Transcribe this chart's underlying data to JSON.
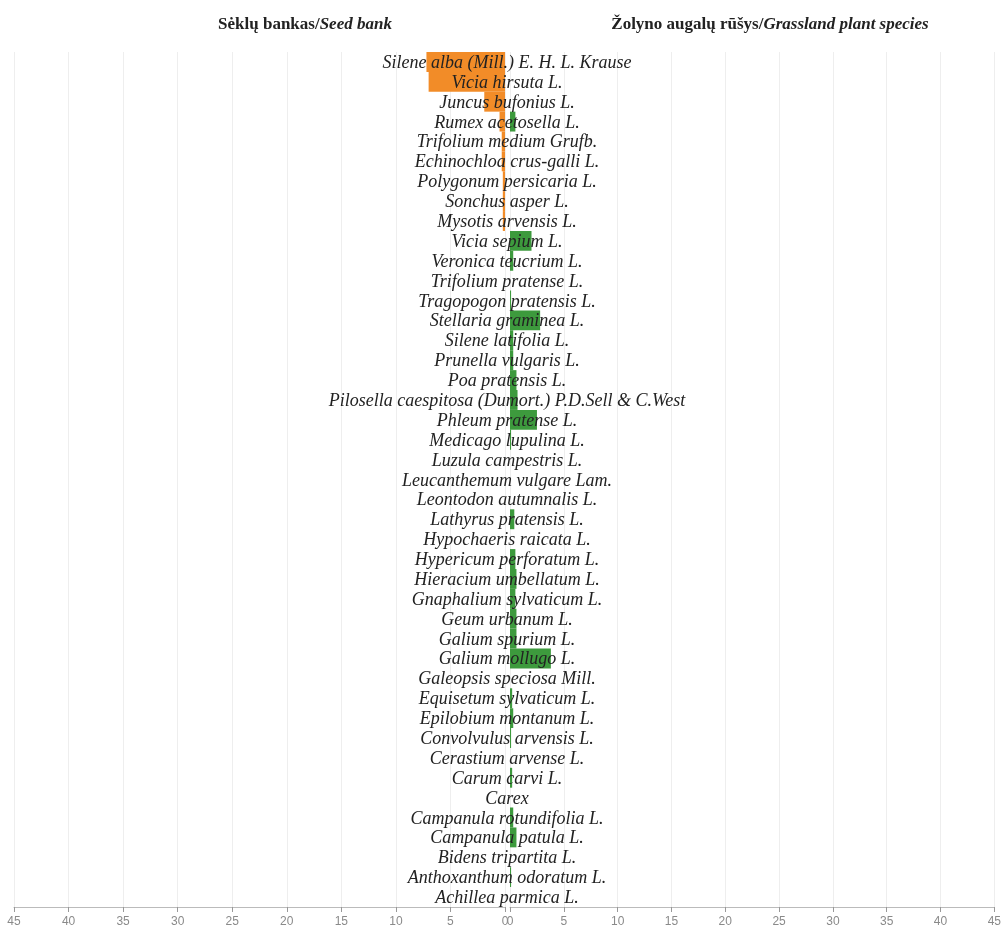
{
  "chart_data": [
    {
      "type": "bar",
      "orientation": "horizontal",
      "title": "Sėklų bankas/Seed bank",
      "tick_labels": "x",
      "grid": "x",
      "categories": [
        null,
        null,
        null,
        null,
        null,
        null,
        null,
        null,
        null,
        null,
        null,
        null,
        null,
        null,
        null,
        null,
        null,
        null,
        null,
        null,
        null,
        null,
        null,
        null,
        null,
        null,
        null,
        null,
        null,
        null,
        null,
        null,
        null,
        null,
        null,
        null,
        null,
        null,
        null,
        null,
        null,
        null,
        null
      ],
      "values": [
        7.2,
        7.0,
        1.9,
        0.5,
        0.3,
        0.3,
        0.2,
        0.2,
        0.2,
        0,
        0,
        0,
        0,
        0,
        0,
        0,
        0,
        0,
        0,
        0,
        0,
        0,
        0,
        0,
        0,
        0,
        0,
        0,
        0,
        0,
        0,
        0,
        0,
        0,
        0,
        0,
        0,
        0,
        0,
        0,
        0,
        0,
        0
      ],
      "color": "#f28c28",
      "xlim": [
        45,
        0
      ],
      "xticks": [
        45,
        40,
        35,
        30,
        25,
        20,
        15,
        10,
        5,
        0
      ]
    },
    {
      "type": "bar",
      "orientation": "horizontal",
      "title": "Žolyno augalų rūšys/Grassland plant species",
      "grid": "x",
      "categories": [
        "Silene alba (Mill.) E. H. L. Krause",
        "Vicia hirsuta L.",
        "Juncus bufonius L.",
        "Rumex acetosella L.",
        "Trifolium medium Grufb.",
        "Echinochloa crus-galli L.",
        "Polygonum persicaria L.",
        "Sonchus asper L.",
        "Mysotis arvensis L.",
        "Vicia sepium L.",
        "Veronica teucrium L.",
        "Trifolium pratense L.",
        "Tragopogon pratensis L.",
        "Stellaria graminea L.",
        "Silene latifolia L.",
        "Prunella vulgaris L.",
        "Poa pratensis L.",
        "Pilosella caespitosa (Dumort.) P.D.Sell & C.West",
        "Phleum pratense L.",
        "Medicago lupulina L.",
        "Luzula campestris L.",
        "Leucanthemum vulgare Lam.",
        "Leontodon autumnalis L.",
        "Lathyrus pratensis L.",
        "Hypochaeris raicata L.",
        "Hypericum perforatum L.",
        "Hieracium umbellatum L.",
        "Gnaphalium sylvaticum L.",
        "Geum urbanum L.",
        "Galium spurium L.",
        "Galium mollugo L.",
        "Galeopsis speciosa Mill.",
        "Equisetum sylvaticum L.",
        "Epilobium montanum L.",
        "Convolvulus arvensis L.",
        "Cerastium arvense L.",
        "Carum carvi L.",
        "Carex",
        "Campanula rotundifolia L.",
        "Campanula patula L.",
        "Bidens tripartita L.",
        "Anthoxanthum odoratum L.",
        "Achillea parmica L."
      ],
      "values": [
        0,
        0,
        0,
        0.5,
        0,
        0,
        0,
        0,
        0,
        2.0,
        0.3,
        0,
        0.1,
        2.8,
        0.3,
        0.3,
        0.6,
        0.7,
        2.5,
        0.1,
        0,
        0,
        0,
        0.4,
        0,
        0.5,
        0.6,
        0.5,
        0.6,
        0.6,
        3.8,
        0,
        0.2,
        0.3,
        0.1,
        0,
        0.2,
        0,
        0.3,
        0.6,
        0,
        0.1,
        0
      ],
      "color": "#3d9a3d",
      "xlim": [
        0,
        45
      ],
      "xticks": [
        0,
        5,
        10,
        15,
        20,
        25,
        30,
        35,
        40,
        45
      ]
    }
  ]
}
